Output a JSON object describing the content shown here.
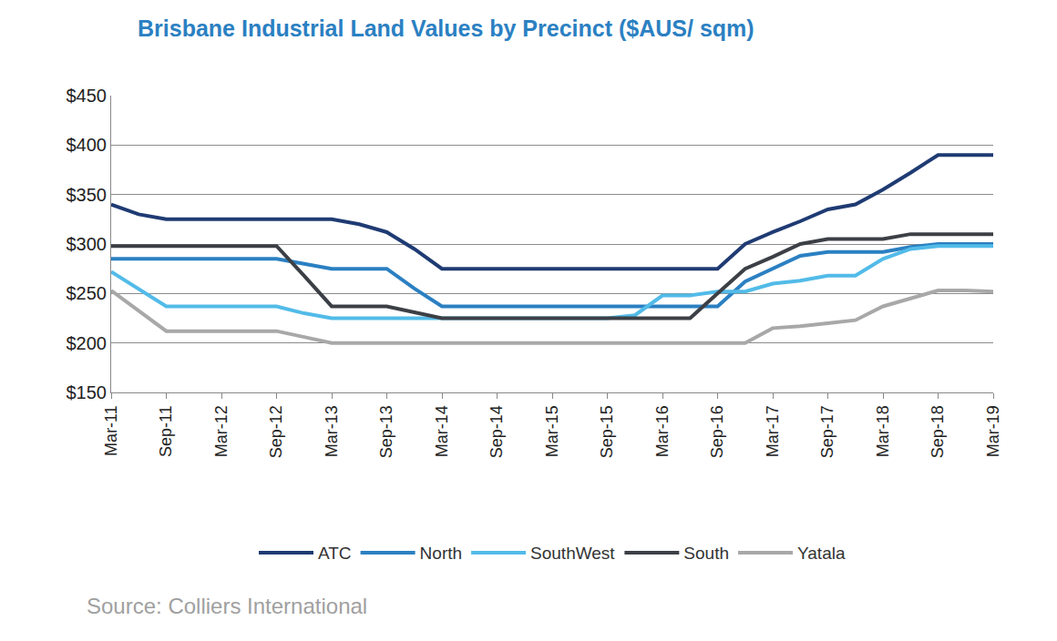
{
  "chart_data": {
    "type": "line",
    "title": "Brisbane Industrial Land Values by Precinct ($AUS/ sqm)",
    "annotations": [
      "Source: Colliers International"
    ],
    "categories": [
      "Mar-11",
      null,
      "Sep-11",
      null,
      "Mar-12",
      null,
      "Sep-12",
      null,
      "Mar-13",
      null,
      "Sep-13",
      null,
      "Mar-14",
      null,
      "Sep-14",
      null,
      "Mar-15",
      null,
      "Sep-15",
      null,
      "Mar-16",
      null,
      "Sep-16",
      null,
      "Mar-17",
      null,
      "Sep-17",
      null,
      "Mar-18",
      null,
      "Sep-18",
      null,
      "Mar-19"
    ],
    "series": [
      {
        "name": "ATC",
        "color": "#1f3b73",
        "values": [
          340,
          330,
          325,
          325,
          325,
          325,
          325,
          325,
          325,
          320,
          312,
          295,
          275,
          275,
          275,
          275,
          275,
          275,
          275,
          275,
          275,
          275,
          275,
          300,
          312,
          323,
          335,
          340,
          355,
          372,
          390,
          390,
          390
        ]
      },
      {
        "name": "North",
        "color": "#2b80c2",
        "values": [
          285,
          285,
          285,
          285,
          285,
          285,
          285,
          280,
          275,
          275,
          275,
          255,
          237,
          237,
          237,
          237,
          237,
          237,
          237,
          237,
          237,
          237,
          237,
          262,
          275,
          288,
          292,
          292,
          292,
          297,
          300,
          300,
          300
        ]
      },
      {
        "name": "SouthWest",
        "color": "#52bbe8",
        "values": [
          272,
          255,
          237,
          237,
          237,
          237,
          237,
          230,
          225,
          225,
          225,
          225,
          225,
          225,
          225,
          225,
          225,
          225,
          225,
          228,
          248,
          248,
          252,
          252,
          260,
          263,
          268,
          268,
          285,
          295,
          298,
          298,
          298
        ]
      },
      {
        "name": "South",
        "color": "#3c4046",
        "values": [
          298,
          298,
          298,
          298,
          298,
          298,
          298,
          268,
          237,
          237,
          237,
          231,
          225,
          225,
          225,
          225,
          225,
          225,
          225,
          225,
          225,
          225,
          250,
          275,
          287,
          300,
          305,
          305,
          305,
          310,
          310,
          310,
          310
        ]
      },
      {
        "name": "Yatala",
        "color": "#a8a8a8",
        "values": [
          253,
          232,
          212,
          212,
          212,
          212,
          212,
          206,
          200,
          200,
          200,
          200,
          200,
          200,
          200,
          200,
          200,
          200,
          200,
          200,
          200,
          200,
          200,
          200,
          215,
          217,
          220,
          223,
          237,
          245,
          253,
          253,
          252
        ]
      }
    ],
    "ylim": [
      150,
      450
    ],
    "yticks": [
      {
        "value": 150,
        "label": "$150"
      },
      {
        "value": 200,
        "label": "$200"
      },
      {
        "value": 250,
        "label": "$250"
      },
      {
        "value": 300,
        "label": "$300"
      },
      {
        "value": 350,
        "label": "$350"
      },
      {
        "value": 400,
        "label": "$400"
      },
      {
        "value": 450,
        "label": "$450"
      }
    ],
    "grid": true,
    "legend": "bottom"
  }
}
